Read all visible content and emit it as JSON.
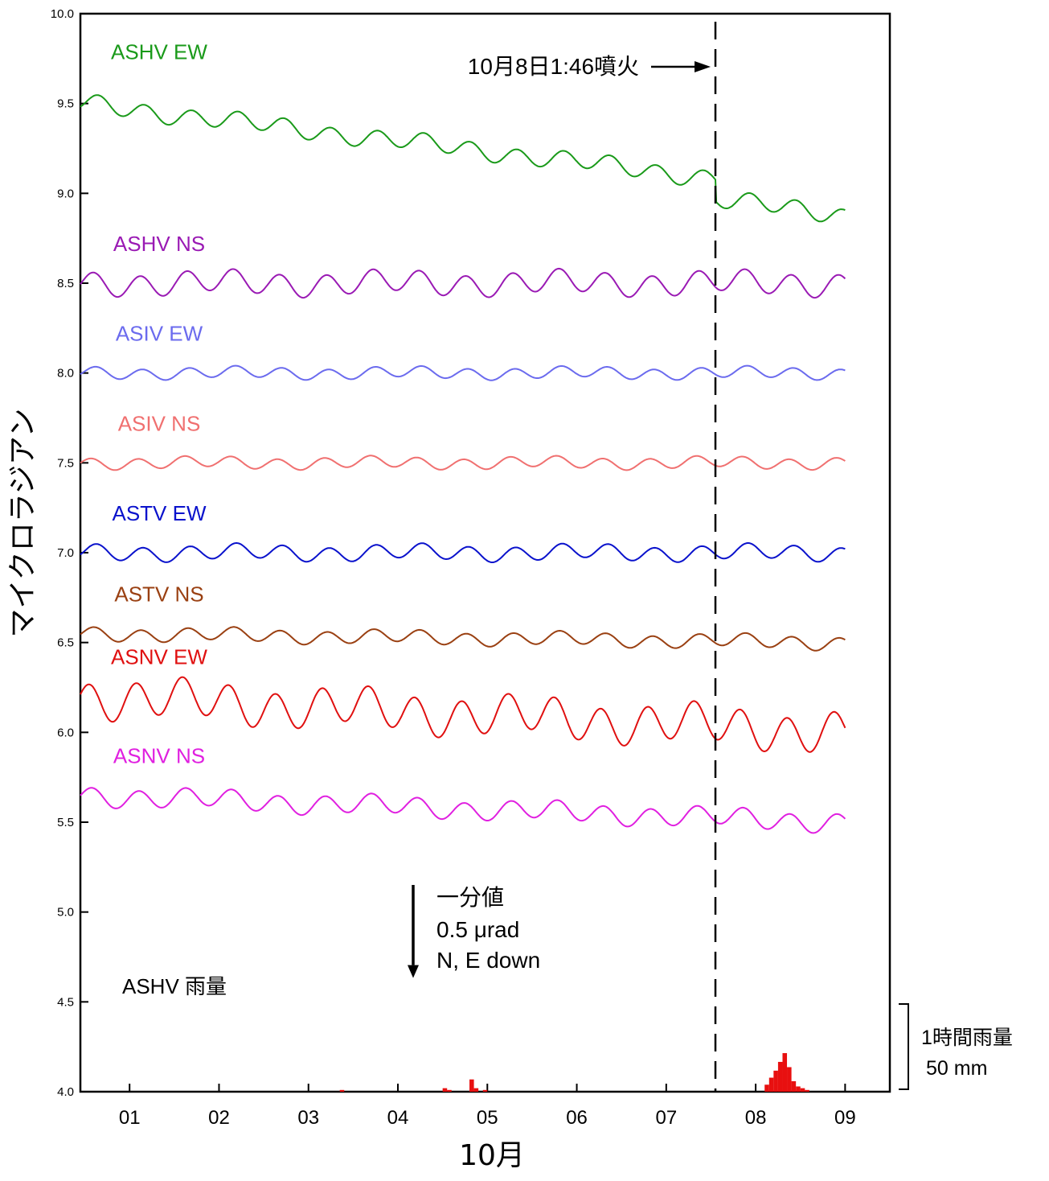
{
  "chart_data": {
    "type": "line",
    "xlabel": "10月",
    "ylabel": "マイクロラジアン",
    "ylim": [
      4.0,
      10.0
    ],
    "y_ticks": [
      "10.0",
      "9.5",
      "9.0",
      "8.5",
      "8.0",
      "7.5",
      "7.0",
      "6.5",
      "6.0",
      "5.5",
      "5.0",
      "4.5",
      "4.0"
    ],
    "xlim": [
      0.45,
      9.5
    ],
    "x_ticks": [
      "01",
      "02",
      "03",
      "04",
      "05",
      "06",
      "07",
      "08",
      "09"
    ],
    "grid": false,
    "series": [
      {
        "name": "ASHV EW",
        "color": "#1a9a1a",
        "base": 9.5,
        "end": 9.0,
        "amp": 0.045,
        "phase": 0.0,
        "step_at": 7.55,
        "step": -0.12
      },
      {
        "name": "ASHV NS",
        "color": "#9a1ab4",
        "base": 8.5,
        "end": 8.5,
        "amp": 0.06,
        "phase": 0.6,
        "step_at": null,
        "step": 0
      },
      {
        "name": "ASIV EW",
        "color": "#6b6bee",
        "base": 8.0,
        "end": 8.0,
        "amp": 0.03,
        "phase": 0.3,
        "step_at": null,
        "step": 0
      },
      {
        "name": "ASIV NS",
        "color": "#f07070",
        "base": 7.5,
        "end": 7.5,
        "amp": 0.03,
        "phase": 0.9,
        "step_at": null,
        "step": 0
      },
      {
        "name": "ASTV EW",
        "color": "#0a12cc",
        "base": 7.0,
        "end": 7.0,
        "amp": 0.04,
        "phase": 0.2,
        "step_at": null,
        "step": 0
      },
      {
        "name": "ASTV NS",
        "color": "#9a4012",
        "base": 6.55,
        "end": 6.5,
        "amp": 0.035,
        "phase": 0.5,
        "step_at": null,
        "step": 0
      },
      {
        "name": "ASNV EW",
        "color": "#e01010",
        "base": 6.2,
        "end": 6.0,
        "amp": 0.1,
        "phase": 1.2,
        "step_at": null,
        "step": 0
      },
      {
        "name": "ASNV NS",
        "color": "#e020e0",
        "base": 5.65,
        "end": 5.5,
        "amp": 0.05,
        "phase": 0.8,
        "step_at": null,
        "step": 0
      }
    ],
    "rain": {
      "name": "ASHV 雨量",
      "color": "#e81010",
      "bars": [
        {
          "x": 4.5,
          "v": 2
        },
        {
          "x": 4.55,
          "v": 1
        },
        {
          "x": 4.8,
          "v": 7
        },
        {
          "x": 4.85,
          "v": 2
        },
        {
          "x": 4.95,
          "v": 1
        },
        {
          "x": 3.35,
          "v": 1
        },
        {
          "x": 8.1,
          "v": 4
        },
        {
          "x": 8.15,
          "v": 8
        },
        {
          "x": 8.2,
          "v": 12
        },
        {
          "x": 8.25,
          "v": 17
        },
        {
          "x": 8.3,
          "v": 22
        },
        {
          "x": 8.35,
          "v": 14
        },
        {
          "x": 8.4,
          "v": 6
        },
        {
          "x": 8.45,
          "v": 3
        },
        {
          "x": 8.5,
          "v": 2
        },
        {
          "x": 8.55,
          "v": 1
        }
      ],
      "scale_label_1": "1時間雨量",
      "scale_label_2": "50 mm",
      "scale_mm": 50
    },
    "eruption": {
      "x": 7.55,
      "label": "10月8日1:46噴火"
    },
    "scale_note": {
      "line1": "一分値",
      "line2": "0.5 μrad",
      "line3": "N, E down",
      "value": 0.5
    }
  }
}
